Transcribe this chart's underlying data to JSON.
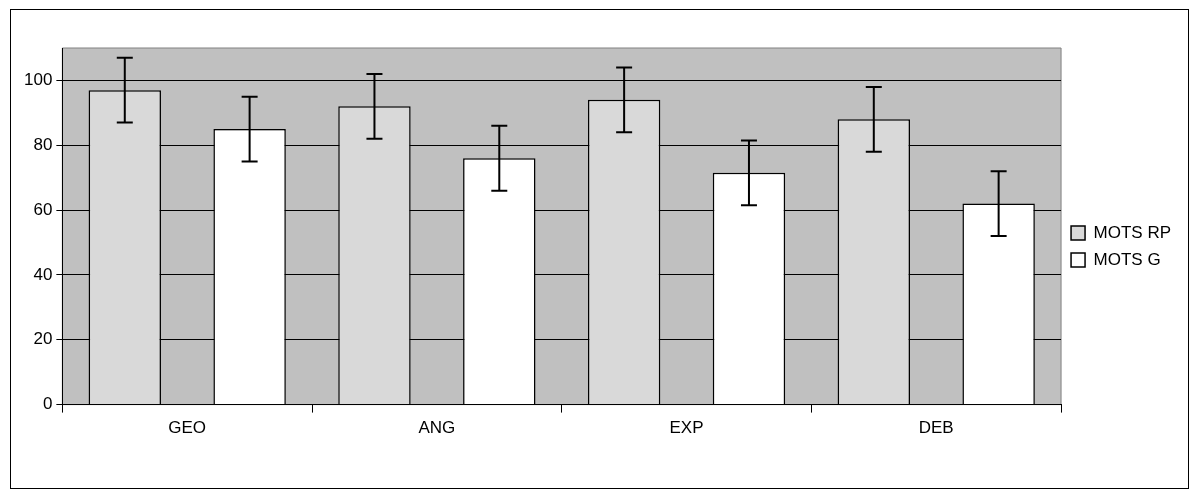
{
  "chart_data": {
    "type": "bar",
    "categories": [
      "GEO",
      "ANG",
      "EXP",
      "DEB"
    ],
    "series": [
      {
        "name": "MOTS RP",
        "color": "#d9d9d9",
        "values": [
          97,
          92,
          94,
          88
        ],
        "errors": [
          10,
          10,
          10,
          10
        ]
      },
      {
        "name": "MOTS G",
        "color": "#ffffff",
        "values": [
          85,
          76,
          71.5,
          62
        ],
        "errors": [
          10,
          10,
          10,
          10
        ]
      }
    ],
    "ylim": [
      0,
      110
    ],
    "yticks": [
      0,
      20,
      40,
      60,
      80,
      100
    ],
    "grid": "y",
    "legend": "right"
  }
}
